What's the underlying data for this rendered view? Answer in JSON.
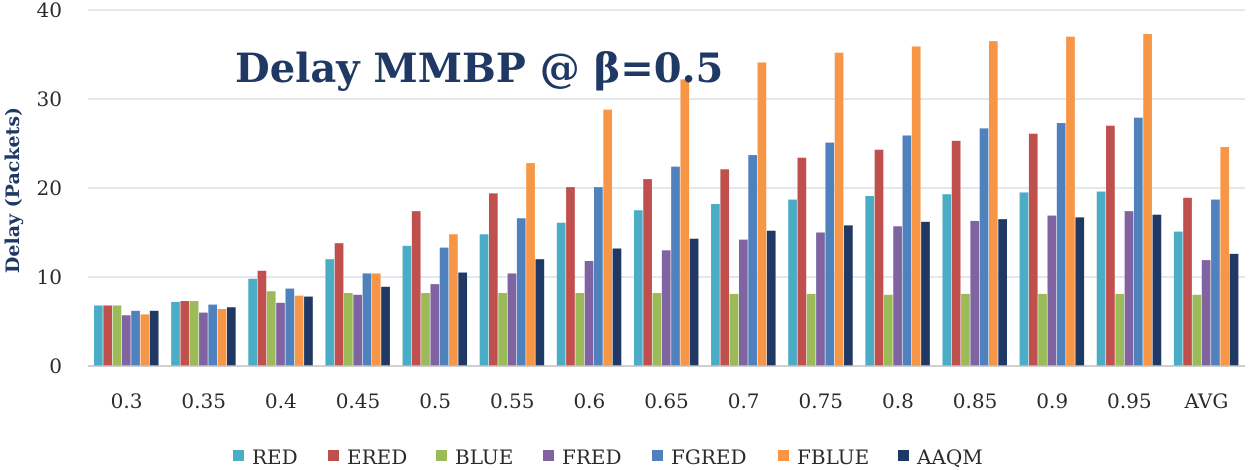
{
  "chart_data": {
    "type": "bar",
    "title": "Delay MMBP @ β=0.5",
    "xlabel": "",
    "ylabel": "Delay (Packets)",
    "ylim": [
      0,
      40
    ],
    "yticks": [
      0,
      10,
      20,
      30,
      40
    ],
    "grid": true,
    "legend_position": "bottom",
    "categories": [
      "0.3",
      "0.35",
      "0.4",
      "0.45",
      "0.5",
      "0.55",
      "0.6",
      "0.65",
      "0.7",
      "0.75",
      "0.8",
      "0.85",
      "0.9",
      "0.95",
      "AVG"
    ],
    "series": [
      {
        "name": "RED",
        "color": "#4bacc6",
        "values": [
          6.8,
          7.2,
          9.8,
          12.0,
          13.5,
          14.8,
          16.1,
          17.5,
          18.2,
          18.7,
          19.1,
          19.3,
          19.5,
          19.6,
          15.1
        ]
      },
      {
        "name": "ERED",
        "color": "#c0504d",
        "values": [
          6.8,
          7.3,
          10.7,
          13.8,
          17.4,
          19.4,
          20.1,
          21.0,
          22.1,
          23.4,
          24.3,
          25.3,
          26.1,
          27.0,
          18.9
        ]
      },
      {
        "name": "BLUE",
        "color": "#9bbb59",
        "values": [
          6.8,
          7.3,
          8.4,
          8.2,
          8.2,
          8.2,
          8.2,
          8.2,
          8.1,
          8.1,
          8.0,
          8.1,
          8.1,
          8.1,
          8.0
        ]
      },
      {
        "name": "FRED",
        "color": "#8064a2",
        "values": [
          5.7,
          6.0,
          7.1,
          8.0,
          9.2,
          10.4,
          11.8,
          13.0,
          14.2,
          15.0,
          15.7,
          16.3,
          16.9,
          17.4,
          11.9
        ]
      },
      {
        "name": "FGRED",
        "color": "#4f81bd",
        "values": [
          6.2,
          6.9,
          8.7,
          10.4,
          13.3,
          16.6,
          20.1,
          22.4,
          23.7,
          25.1,
          25.9,
          26.7,
          27.3,
          27.9,
          18.7
        ]
      },
      {
        "name": "FBLUE",
        "color": "#f79646",
        "values": [
          5.8,
          6.4,
          7.9,
          10.4,
          14.8,
          22.8,
          28.8,
          32.2,
          34.1,
          35.2,
          35.9,
          36.5,
          37.0,
          37.3,
          24.6
        ]
      },
      {
        "name": "AAQM",
        "color": "#1f3864",
        "values": [
          6.2,
          6.6,
          7.8,
          8.9,
          10.5,
          12.0,
          13.2,
          14.3,
          15.2,
          15.8,
          16.2,
          16.5,
          16.7,
          17.0,
          12.6
        ]
      }
    ]
  }
}
